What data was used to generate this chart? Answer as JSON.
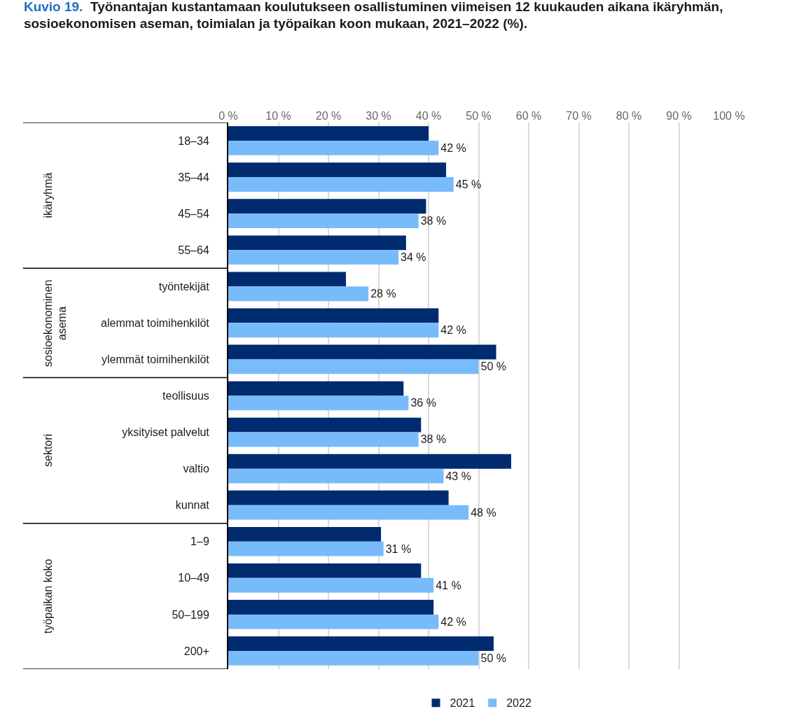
{
  "chart_data": {
    "type": "bar",
    "orientation": "horizontal",
    "title": "Kuvio 19.  Työnantajan kustantamaan koulutukseen osallistuminen viimeisen 12 kuukauden aikana ikäryhmän, sosioekonomisen aseman, toimialan ja työpaikan koon mukaan, 2021–2022 (%).",
    "categories": [
      "18–34",
      "35–44",
      "45–54",
      "55–64",
      "työntekijät",
      "alemmat toimihenkilöt",
      "ylemmät toimihenkilöt",
      "teollisuus",
      "yksityiset palvelut",
      "valtio",
      "kunnat",
      "1–9",
      "10–49",
      "50–199",
      "200+"
    ],
    "series": [
      {
        "name": "2021",
        "color": "#002b6e",
        "values": [
          40,
          43.5,
          39.5,
          35.5,
          23.5,
          42,
          53.5,
          35,
          38.5,
          56.5,
          44,
          30.5,
          38.5,
          41,
          53
        ]
      },
      {
        "name": "2022",
        "color": "#78bbfa",
        "values": [
          42,
          45,
          38,
          34,
          28,
          42,
          50,
          36,
          38,
          43,
          48,
          31,
          41,
          42,
          50
        ],
        "value_labels": [
          "42 %",
          "45 %",
          "38 %",
          "34 %",
          "28 %",
          "42 %",
          "50 %",
          "36 %",
          "38 %",
          "43 %",
          "48 %",
          "31 %",
          "41 %",
          "42 %",
          "50 %"
        ]
      }
    ],
    "annotations": [
      "ikäryhmä",
      "sosioekonominen asema",
      "sektori",
      "työpaikan koko"
    ],
    "xlim": [
      0,
      100
    ],
    "xticks": [
      {
        "value": 0,
        "label": "0 %"
      },
      {
        "value": 10,
        "label": "10 %"
      },
      {
        "value": 20,
        "label": "20 %"
      },
      {
        "value": 30,
        "label": "30 %"
      },
      {
        "value": 40,
        "label": "40 %"
      },
      {
        "value": 50,
        "label": "50 %"
      },
      {
        "value": 60,
        "label": "60 %"
      },
      {
        "value": 70,
        "label": "70 %"
      },
      {
        "value": 80,
        "label": "80 %"
      },
      {
        "value": 90,
        "label": "90 %"
      },
      {
        "value": 100,
        "label": "100 %"
      }
    ],
    "grid": "x",
    "legend": "bottom"
  }
}
